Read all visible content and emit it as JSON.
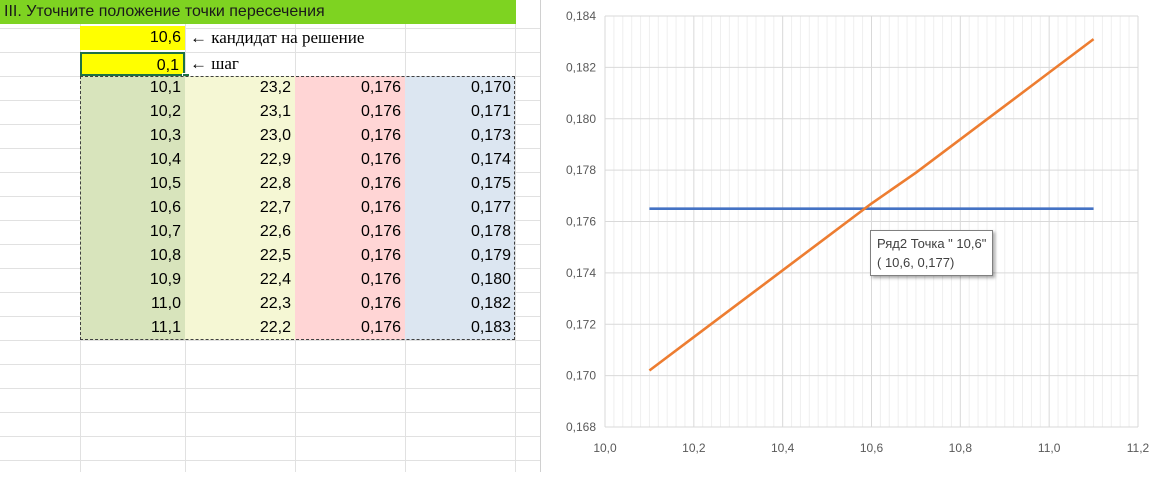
{
  "sheet": {
    "title": "III. Уточните положение точки пересечения",
    "candidate_value": "10,6",
    "candidate_note": "← кандидат на решение",
    "step_value": "0,1",
    "step_note": "← шаг",
    "table": [
      [
        "10,1",
        "23,2",
        "0,176",
        "0,170"
      ],
      [
        "10,2",
        "23,1",
        "0,176",
        "0,171"
      ],
      [
        "10,3",
        "23,0",
        "0,176",
        "0,173"
      ],
      [
        "10,4",
        "22,9",
        "0,176",
        "0,174"
      ],
      [
        "10,5",
        "22,8",
        "0,176",
        "0,175"
      ],
      [
        "10,6",
        "22,7",
        "0,176",
        "0,177"
      ],
      [
        "10,7",
        "22,6",
        "0,176",
        "0,178"
      ],
      [
        "10,8",
        "22,5",
        "0,176",
        "0,179"
      ],
      [
        "10,9",
        "22,4",
        "0,176",
        "0,180"
      ],
      [
        "11,0",
        "22,3",
        "0,176",
        "0,182"
      ],
      [
        "11,1",
        "22,2",
        "0,176",
        "0,183"
      ]
    ],
    "column_colors": [
      "#d8e4bc",
      "#f5f7d4",
      "#ffd5d5",
      "#dce6f1"
    ]
  },
  "chart_data": {
    "type": "line",
    "xlim": [
      10.0,
      11.2
    ],
    "ylim": [
      0.168,
      0.184
    ],
    "x_ticks": [
      "10,0",
      "10,2",
      "10,4",
      "10,6",
      "10,8",
      "11,0",
      "11,2"
    ],
    "y_ticks": [
      "0,168",
      "0,170",
      "0,172",
      "0,174",
      "0,176",
      "0,178",
      "0,180",
      "0,182",
      "0,184"
    ],
    "x": [
      10.1,
      10.2,
      10.3,
      10.4,
      10.5,
      10.6,
      10.7,
      10.8,
      10.9,
      11.0,
      11.1
    ],
    "series": [
      {
        "values": [
          0.1765,
          0.1765,
          0.1765,
          0.1765,
          0.1765,
          0.1765,
          0.1765,
          0.1765,
          0.1765,
          0.1765,
          0.1765
        ],
        "color": "#4472c4"
      },
      {
        "values": [
          0.1702,
          0.1715,
          0.1728,
          0.1741,
          0.1754,
          0.1767,
          0.1779,
          0.1792,
          0.1805,
          0.1818,
          0.1831
        ],
        "color": "#ed7d31"
      }
    ],
    "grid": true,
    "tooltip": {
      "line1": "Ряд2 Точка \" 10,6\"",
      "line2": "( 10,6,  0,177)"
    }
  }
}
